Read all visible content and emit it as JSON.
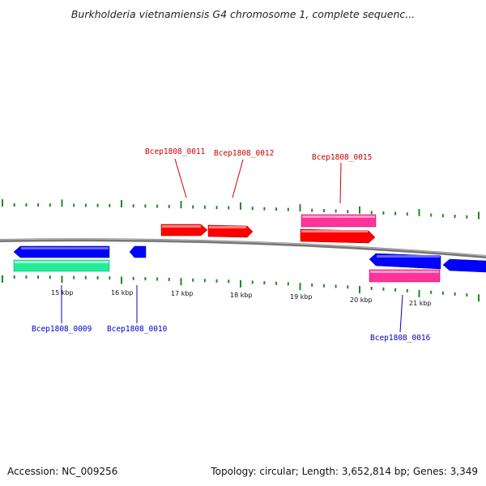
{
  "title": "Burkholderia vietnamiensis G4 chromosome 1, complete sequenc...",
  "footer": {
    "accession": "Accession: NC_009256",
    "summary": "Topology: circular; Length: 3,652,814 bp; Genes: 3,349"
  },
  "scale_labels": [
    "15 kbp",
    "16 kbp",
    "17 kbp",
    "18 kbp",
    "19 kbp",
    "20 kbp",
    "21 kbp"
  ],
  "gene_labels": {
    "g0009": "Bcep1808_0009",
    "g0010": "Bcep1808_0010",
    "g0011": "Bcep1808_0011",
    "g0012": "Bcep1808_0012",
    "g0015": "Bcep1808_0015",
    "g0016": "Bcep1808_0016"
  },
  "colors": {
    "forward_cds": "#ff0000",
    "forward_rna": "#ff3399",
    "reverse_cds": "#0000ff",
    "reverse_rna": "#22ee99",
    "tick": "#228822",
    "backbone": "#777777",
    "label_forward": "#cc0000",
    "label_reverse": "#0000cc"
  }
}
